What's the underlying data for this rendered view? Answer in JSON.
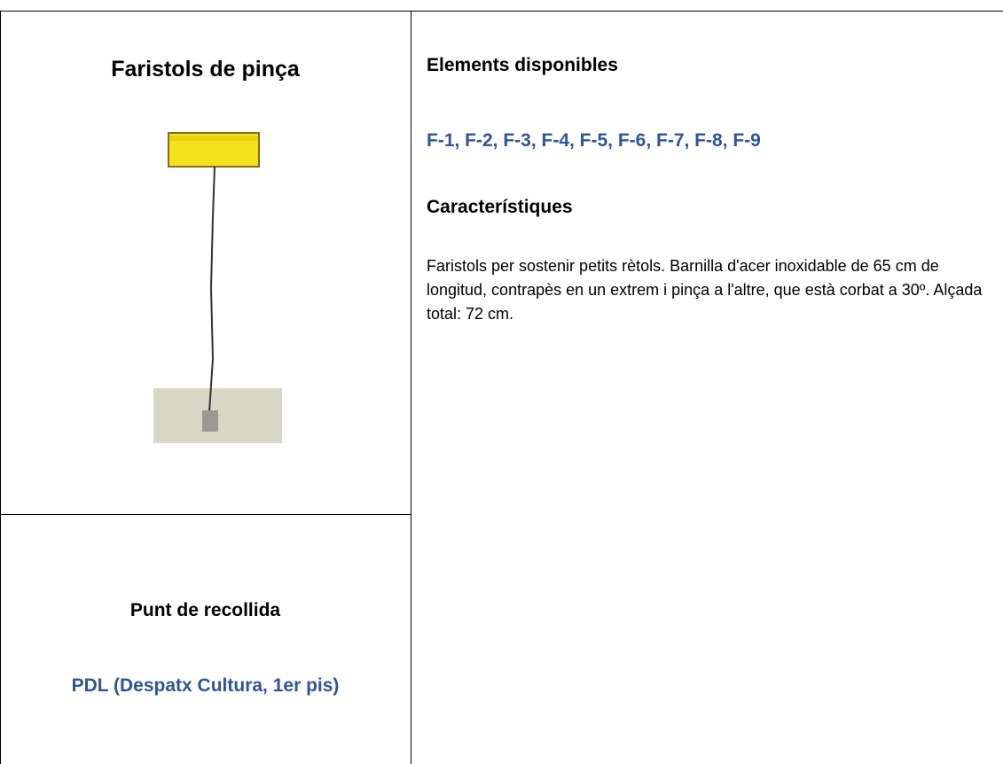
{
  "left": {
    "title": "Faristols de pinça",
    "pickup_heading": "Punt de recollida",
    "pickup_location": "PDL (Despatx Cultura, 1er pis)"
  },
  "right": {
    "elements_heading": "Elements disponibles",
    "elements": "F-1, F-2, F-3, F-4, F-5, F-6, F-7, F-8, F-9",
    "features_heading": "Característiques",
    "features_text": "Faristols per sostenir petits rètols. Barnilla d'acer inoxidable de 65 cm de longitud, contrapès en un extrem i pinça a l'altre, que està corbat a 30º. Alçada total: 72 cm."
  }
}
